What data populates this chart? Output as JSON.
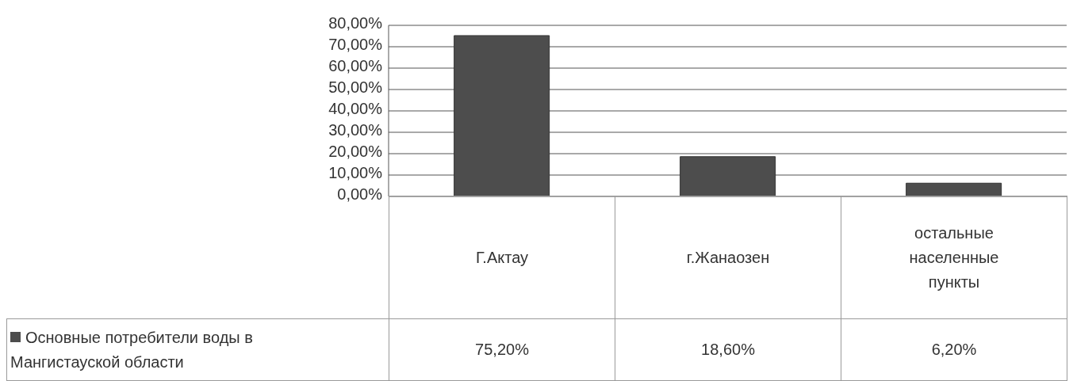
{
  "chart_data": {
    "type": "bar",
    "categories": [
      "Г.Актау",
      "г.Жанаозен",
      "остальные населенные пункты"
    ],
    "series": [
      {
        "name": "Основные потребители воды в Мангистауской области",
        "color": "#4d4d4d",
        "values": [
          75.2,
          18.6,
          6.2
        ],
        "value_labels": [
          "75,20%",
          "18,60%",
          "6,20%"
        ]
      }
    ],
    "ylim": [
      0,
      80
    ],
    "yticks": [
      {
        "value": 0,
        "label": "0,00%"
      },
      {
        "value": 10,
        "label": "10,00%"
      },
      {
        "value": 20,
        "label": "20,00%"
      },
      {
        "value": 30,
        "label": "30,00%"
      },
      {
        "value": 40,
        "label": "40,00%"
      },
      {
        "value": 50,
        "label": "50,00%"
      },
      {
        "value": 60,
        "label": "60,00%"
      },
      {
        "value": 70,
        "label": "70,00%"
      },
      {
        "value": 80,
        "label": "80,00%"
      }
    ],
    "grid": "y",
    "legend": "bottom left"
  }
}
